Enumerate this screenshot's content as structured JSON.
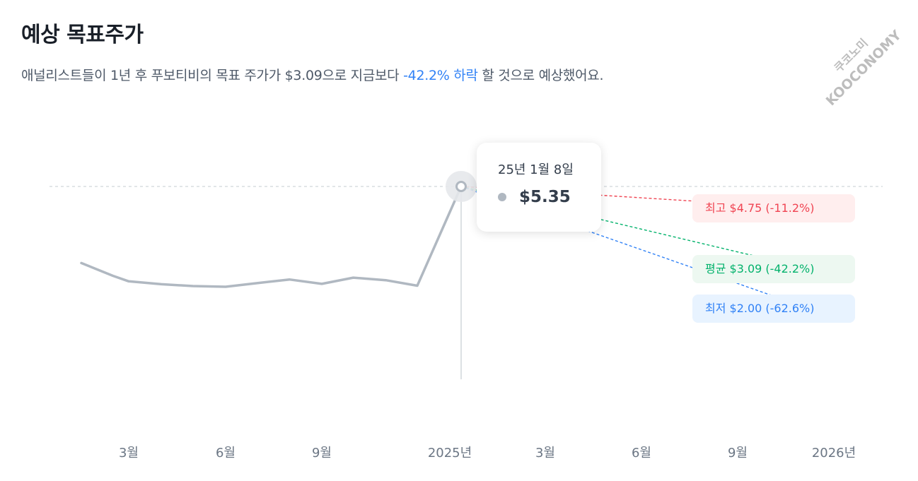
{
  "header": {
    "title": "예상 목표주가",
    "subtitle_prefix": "애널리스트들이 1년 후 푸보티비의 목표 주가가 $3.09으로 지금보다 ",
    "subtitle_highlight": "-42.2% 하락",
    "subtitle_suffix": " 할 것으로 예상했어요."
  },
  "watermark": {
    "line1": "쿠코노미",
    "line2": "KOOCONOMY"
  },
  "tooltip": {
    "date": "25년 1월 8일",
    "value": "$5.35"
  },
  "colors": {
    "price_line": "#b0b8c1",
    "high": "#f04452",
    "avg": "#03b26c",
    "low": "#3182f6",
    "highlight": "#3182f6"
  },
  "chart_data": {
    "type": "line",
    "title": "",
    "xlabel": "",
    "ylabel": "",
    "x_ticks": [
      "3월",
      "6월",
      "9월",
      "2025년",
      "3월",
      "6월",
      "9월",
      "2026년"
    ],
    "x_tick_dates": [
      "2024-03",
      "2024-06",
      "2024-09",
      "2025-01",
      "2025-03",
      "2025-06",
      "2025-09",
      "2026-01"
    ],
    "ylim": [
      1.9,
      5.55
    ],
    "series": [
      {
        "role": "price",
        "x": [
          "2024-01-16",
          "2024-02-15",
          "2024-03-01",
          "2024-04-01",
          "2024-05-01",
          "2024-06-01",
          "2024-07-01",
          "2024-08-01",
          "2024-09-01",
          "2024-10-01",
          "2024-11-01",
          "2024-12-01",
          "2025-01-08"
        ],
        "values": [
          3.25,
          2.9,
          2.75,
          2.67,
          2.62,
          2.6,
          2.7,
          2.8,
          2.68,
          2.85,
          2.78,
          2.63,
          5.35
        ]
      }
    ],
    "reference_line": 5.35,
    "projections": [
      {
        "key": "high",
        "label": "최고 $4.75 (-11.2%)",
        "value": 4.75,
        "date": "2025-12"
      },
      {
        "key": "avg",
        "label": "평균 $3.09 (-42.2%)",
        "value": 3.09,
        "date": "2025-12"
      },
      {
        "key": "low",
        "label": "최저 $2.00 (-62.6%)",
        "value": 2.0,
        "date": "2025-12"
      }
    ]
  }
}
